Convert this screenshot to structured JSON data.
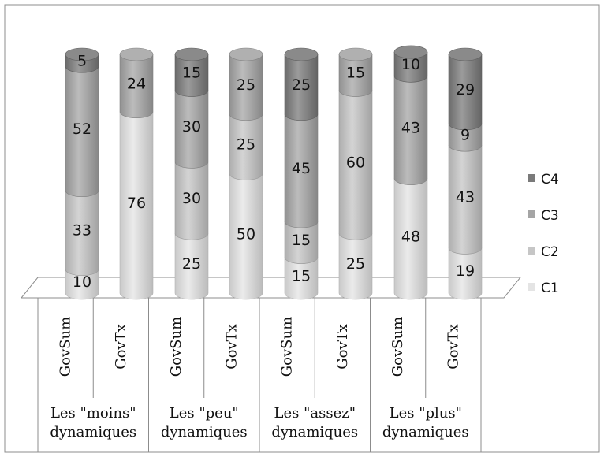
{
  "chart_data": {
    "type": "bar",
    "stacked": true,
    "title": "",
    "xlabel": "",
    "ylabel": "",
    "ylim": [
      0,
      100
    ],
    "grid": false,
    "legend_position": "right",
    "groups": [
      "Les \"moins\" dynamiques",
      "Les \"peu\" dynamiques",
      "Les \"assez\" dynamiques",
      "Les \"plus\" dynamiques"
    ],
    "categories": [
      "GovSum",
      "GovTx",
      "GovSum",
      "GovTx",
      "GovSum",
      "GovTx",
      "GovSum",
      "GovTx"
    ],
    "series": [
      {
        "name": "C1",
        "color": "#e4e4e4",
        "values": [
          10,
          76,
          25,
          50,
          15,
          25,
          48,
          19
        ]
      },
      {
        "name": "C2",
        "color": "#c6c6c6",
        "values": [
          33,
          0,
          30,
          25,
          15,
          60,
          0,
          43
        ]
      },
      {
        "name": "C3",
        "color": "#a5a5a5",
        "values": [
          52,
          24,
          30,
          25,
          45,
          15,
          43,
          9
        ]
      },
      {
        "name": "C4",
        "color": "#7a7a7a",
        "values": [
          5,
          0,
          15,
          0,
          25,
          0,
          10,
          29
        ]
      }
    ],
    "legend_order": [
      "C4",
      "C3",
      "C2",
      "C1"
    ]
  }
}
